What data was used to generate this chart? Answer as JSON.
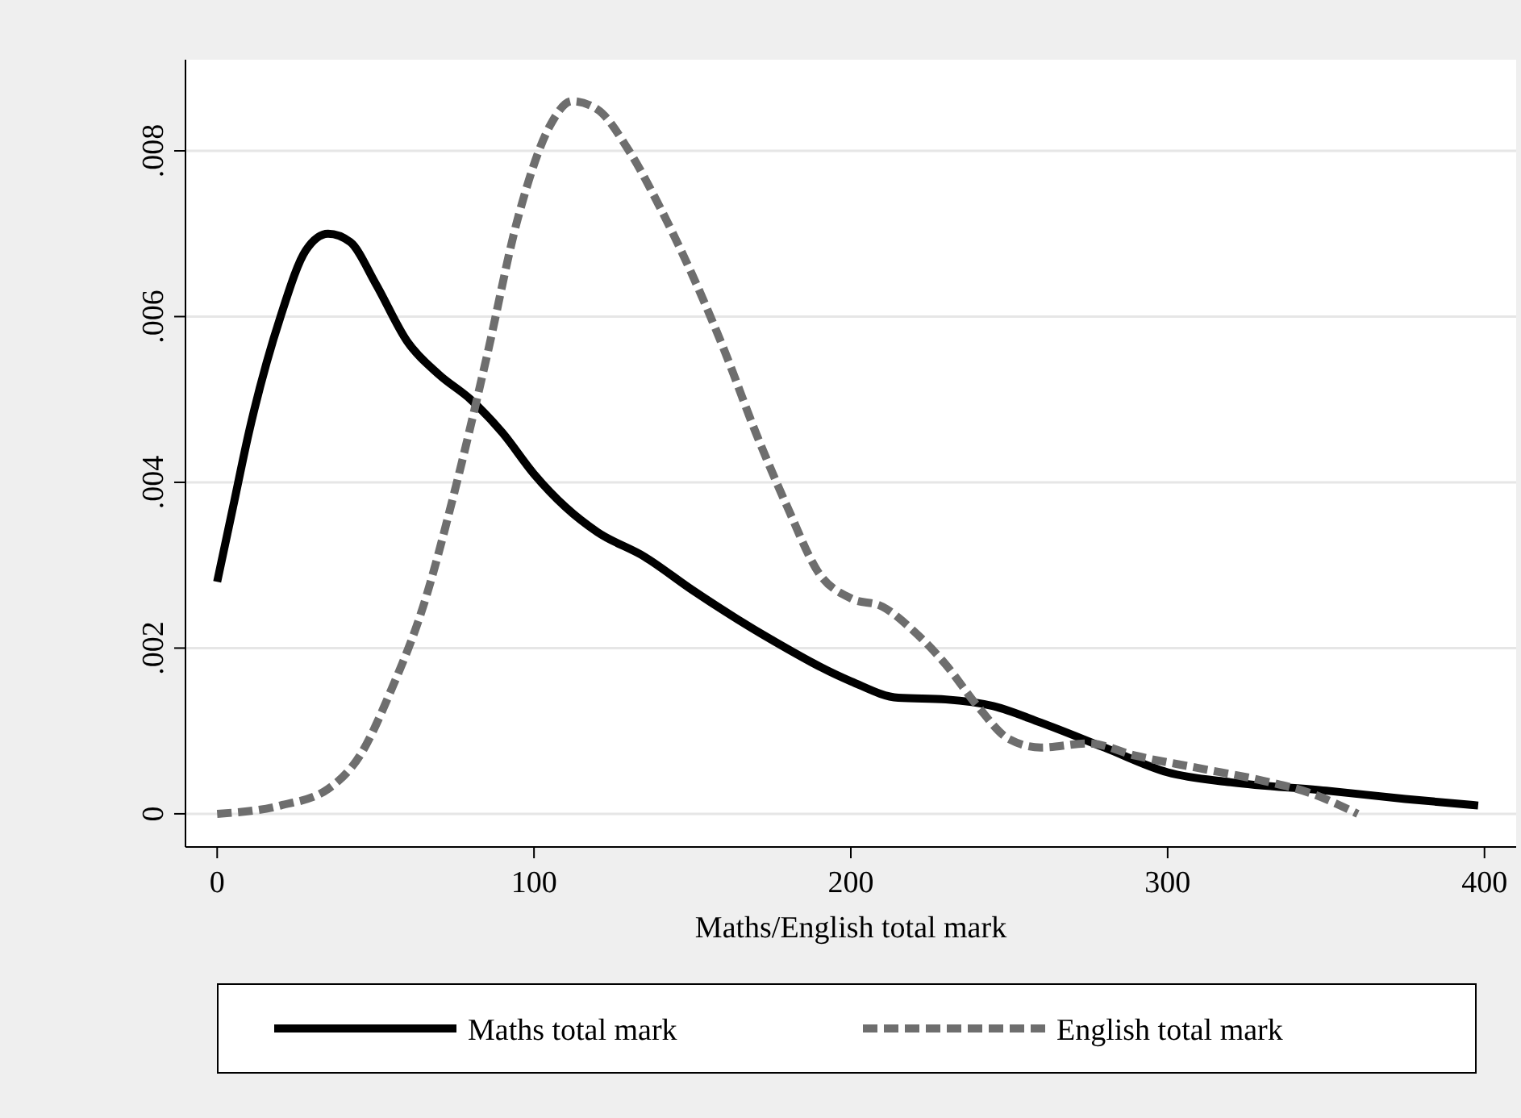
{
  "chart_data": {
    "type": "line",
    "xlabel": "Maths/English total mark",
    "xlim": [
      -10,
      410
    ],
    "xticks": [
      0,
      100,
      200,
      300,
      400
    ],
    "ylim": [
      -0.0004,
      0.0091
    ],
    "yticks": [
      0,
      {
        "value": 0.002,
        "label": ".002"
      },
      {
        "value": 0.004,
        "label": ".004"
      },
      {
        "value": 0.006,
        "label": ".006"
      },
      {
        "value": 0.008,
        "label": ".008"
      }
    ],
    "grid": "y",
    "legend": "bottom",
    "series": [
      {
        "name": "Maths total mark",
        "color": "#000000",
        "line_style": "solid",
        "x": [
          0,
          5,
          10,
          20,
          28,
          35,
          42,
          50,
          60,
          70,
          80,
          90,
          100,
          110,
          120,
          135,
          150,
          175,
          200,
          215,
          230,
          245,
          260,
          280,
          300,
          320,
          350,
          375,
          398
        ],
        "values": [
          0.0028,
          0.0037,
          0.0046,
          0.006,
          0.0068,
          0.007,
          0.0069,
          0.0064,
          0.0057,
          0.0053,
          0.005,
          0.0046,
          0.0041,
          0.0037,
          0.0034,
          0.0031,
          0.0027,
          0.0021,
          0.0016,
          0.0014,
          0.00138,
          0.0013,
          0.0011,
          0.0008,
          0.0005,
          0.00038,
          0.00028,
          0.00018,
          0.0001
        ]
      },
      {
        "name": "English total mark",
        "color": "#6e6e6e",
        "line_style": "dashed",
        "x": [
          0,
          20,
          35,
          45,
          55,
          65,
          75,
          85,
          95,
          105,
          112,
          120,
          130,
          140,
          150,
          160,
          170,
          180,
          190,
          200,
          210,
          220,
          230,
          240,
          250,
          260,
          275,
          290,
          310,
          330,
          345,
          360
        ],
        "values": [
          0,
          0.0001,
          0.0003,
          0.0007,
          0.0015,
          0.0025,
          0.0039,
          0.0055,
          0.0072,
          0.0083,
          0.0086,
          0.0085,
          0.008,
          0.0073,
          0.0065,
          0.0056,
          0.0046,
          0.0037,
          0.0029,
          0.0026,
          0.0025,
          0.0022,
          0.0018,
          0.0013,
          0.0009,
          0.0008,
          0.00085,
          0.0007,
          0.00055,
          0.0004,
          0.00025,
          0
        ]
      }
    ]
  }
}
